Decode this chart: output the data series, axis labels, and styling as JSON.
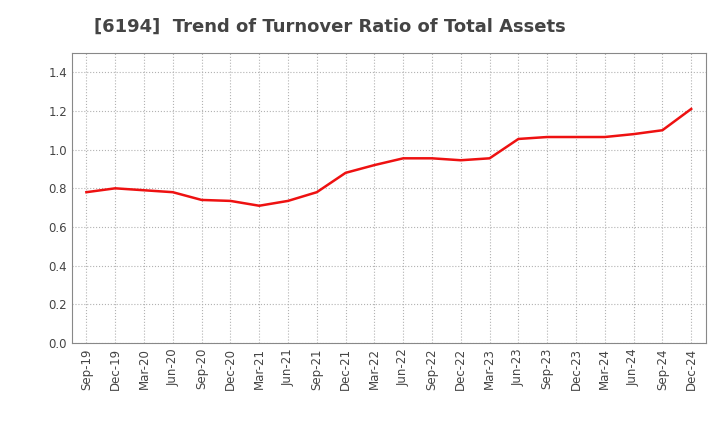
{
  "title": "[6194]  Trend of Turnover Ratio of Total Assets",
  "title_fontsize": 13,
  "title_fontweight": "bold",
  "title_color": "#444444",
  "line_color": "#EE1111",
  "line_width": 1.8,
  "background_color": "#FFFFFF",
  "grid_color": "#AAAAAA",
  "grid_linestyle": ":",
  "grid_linewidth": 0.8,
  "ylim": [
    0.0,
    1.5
  ],
  "yticks": [
    0.0,
    0.2,
    0.4,
    0.6,
    0.8,
    1.0,
    1.2,
    1.4
  ],
  "x_labels": [
    "Sep-19",
    "Dec-19",
    "Mar-20",
    "Jun-20",
    "Sep-20",
    "Dec-20",
    "Mar-21",
    "Jun-21",
    "Sep-21",
    "Dec-21",
    "Mar-22",
    "Jun-22",
    "Sep-22",
    "Dec-22",
    "Mar-23",
    "Jun-23",
    "Sep-23",
    "Dec-23",
    "Mar-24",
    "Jun-24",
    "Sep-24",
    "Dec-24"
  ],
  "values": [
    0.78,
    0.8,
    0.79,
    0.78,
    0.74,
    0.735,
    0.71,
    0.735,
    0.78,
    0.88,
    0.92,
    0.955,
    0.955,
    0.945,
    0.955,
    1.055,
    1.065,
    1.065,
    1.065,
    1.08,
    1.1,
    1.21
  ],
  "tick_fontsize": 8.5,
  "spine_color": "#888888"
}
